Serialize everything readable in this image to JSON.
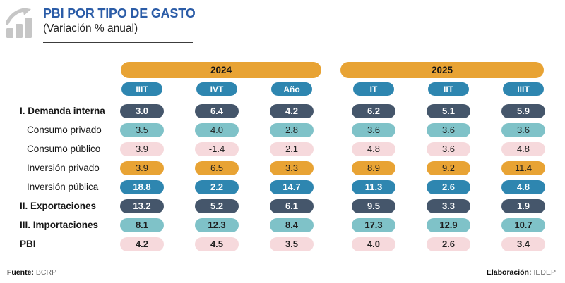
{
  "header": {
    "title": "PBI POR TIPO DE GASTO",
    "subtitle": "(Variación % anual)",
    "icon": "bar-chart-trend-icon"
  },
  "colors": {
    "orange": "#E8A334",
    "blue": "#2E86B0",
    "dark": "#45566B",
    "teal": "#7FC2C8",
    "pink": "#F6D9DC",
    "title_blue": "#2B5CA7",
    "icon_gray": "#C6C6C6",
    "ink": "#1E1E1E"
  },
  "table": {
    "year_groups": [
      {
        "label": "2024",
        "quarters": [
          "IIIT",
          "IVT",
          "Año"
        ]
      },
      {
        "label": "2025",
        "quarters": [
          "IT",
          "IIT",
          "IIIT"
        ]
      }
    ],
    "rows": [
      {
        "label": "I. Demanda interna",
        "label_bold": true,
        "indent": false,
        "pill": "dark",
        "value_bold": false,
        "values": [
          "3.0",
          "6.4",
          "4.2",
          "6.2",
          "5.1",
          "5.9"
        ]
      },
      {
        "label": "Consumo privado",
        "label_bold": false,
        "indent": true,
        "pill": "teal",
        "value_bold": false,
        "values": [
          "3.5",
          "4.0",
          "2.8",
          "3.6",
          "3.6",
          "3.6"
        ]
      },
      {
        "label": "Consumo público",
        "label_bold": false,
        "indent": true,
        "pill": "pink",
        "value_bold": false,
        "values": [
          "3.9",
          "-1.4",
          "2.1",
          "4.8",
          "3.6",
          "4.8"
        ]
      },
      {
        "label": "Inversión privado",
        "label_bold": false,
        "indent": true,
        "pill": "orange",
        "value_bold": false,
        "values": [
          "3.9",
          "6.5",
          "3.3",
          "8.9",
          "9.2",
          "11.4"
        ]
      },
      {
        "label": "Inversión pública",
        "label_bold": false,
        "indent": true,
        "pill": "blue",
        "value_bold": false,
        "values": [
          "18.8",
          "2.2",
          "14.7",
          "11.3",
          "2.6",
          "4.8"
        ]
      },
      {
        "label": "II. Exportaciones",
        "label_bold": true,
        "indent": false,
        "pill": "dark",
        "value_bold": false,
        "values": [
          "13.2",
          "5.2",
          "6.1",
          "9.5",
          "3.3",
          "1.9"
        ]
      },
      {
        "label": "III. Importaciones",
        "label_bold": true,
        "indent": false,
        "pill": "teal",
        "value_bold": true,
        "values": [
          "8.1",
          "12.3",
          "8.4",
          "17.3",
          "12.9",
          "10.7"
        ]
      },
      {
        "label": "PBI",
        "label_bold": true,
        "indent": false,
        "pill": "pink",
        "value_bold": true,
        "values": [
          "4.2",
          "4.5",
          "3.5",
          "4.0",
          "2.6",
          "3.4"
        ]
      }
    ]
  },
  "footer": {
    "source_label": "Fuente:",
    "source_value": "BCRP",
    "elaboration_label": "Elaboración:",
    "elaboration_value": "IEDEP"
  },
  "chart_data": {
    "type": "table",
    "title": "PBI POR TIPO DE GASTO",
    "subtitle": "(Variación % anual)",
    "column_groups": [
      {
        "label": "2024",
        "columns": [
          "IIIT",
          "IVT",
          "Año"
        ]
      },
      {
        "label": "2025",
        "columns": [
          "IT",
          "IIT",
          "IIIT"
        ]
      }
    ],
    "columns": [
      "2024 IIIT",
      "2024 IVT",
      "2024 Año",
      "2025 IT",
      "2025 IIT",
      "2025 IIIT"
    ],
    "rows": [
      {
        "label": "I. Demanda interna",
        "values": [
          3.0,
          6.4,
          4.2,
          6.2,
          5.1,
          5.9
        ]
      },
      {
        "label": "Consumo privado",
        "values": [
          3.5,
          4.0,
          2.8,
          3.6,
          3.6,
          3.6
        ]
      },
      {
        "label": "Consumo público",
        "values": [
          3.9,
          -1.4,
          2.1,
          4.8,
          3.6,
          4.8
        ]
      },
      {
        "label": "Inversión privado",
        "values": [
          3.9,
          6.5,
          3.3,
          8.9,
          9.2,
          11.4
        ]
      },
      {
        "label": "Inversión pública",
        "values": [
          18.8,
          2.2,
          14.7,
          11.3,
          2.6,
          4.8
        ]
      },
      {
        "label": "II. Exportaciones",
        "values": [
          13.2,
          5.2,
          6.1,
          9.5,
          3.3,
          1.9
        ]
      },
      {
        "label": "III. Importaciones",
        "values": [
          8.1,
          12.3,
          8.4,
          17.3,
          12.9,
          10.7
        ]
      },
      {
        "label": "PBI",
        "values": [
          4.2,
          4.5,
          3.5,
          4.0,
          2.6,
          3.4
        ]
      }
    ],
    "source": "BCRP",
    "elaboration": "IEDEP"
  }
}
